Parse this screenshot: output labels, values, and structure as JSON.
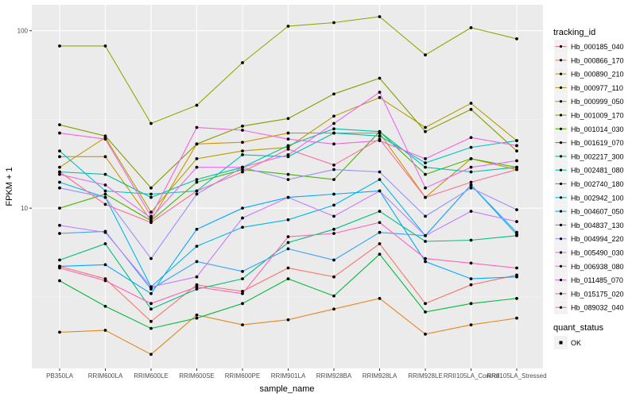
{
  "chart_data": {
    "type": "line",
    "title": "",
    "xlabel": "sample_name",
    "ylabel": "FPKM + 1",
    "y_scale": "log10",
    "ylim": [
      1.25,
      140
    ],
    "y_ticks": [
      10,
      100
    ],
    "y_tick_labels": [
      "10",
      "100"
    ],
    "grid": true,
    "legend_position": "right",
    "categories": [
      "PB350LA",
      "RRIM600LA",
      "RRIM600LE",
      "RRIM600SE",
      "RRIM600PE",
      "RRIM901LA",
      "RRIM928BA",
      "RRIM928LA",
      "RRIM928LE",
      "RRII105LA_Control",
      "RRII105LA_Stressed"
    ],
    "legend_title": "tracking_id",
    "quant_status_title": "quant_status",
    "quant_status_label": "OK",
    "series": [
      {
        "name": "Hb_000185_040",
        "color": "#F8766D",
        "values": [
          4.7,
          4.0,
          2.3,
          3.7,
          3.4,
          4.6,
          4.1,
          6.3,
          2.9,
          3.7,
          4.2
        ]
      },
      {
        "name": "Hb_000866_170",
        "color": "#E7851E",
        "values": [
          2.0,
          2.05,
          1.5,
          2.5,
          2.2,
          2.35,
          2.7,
          3.1,
          1.95,
          2.2,
          2.4
        ]
      },
      {
        "name": "Hb_000890_210",
        "color": "#D09400",
        "values": [
          19.5,
          19.5,
          8.5,
          23.0,
          23.5,
          26.5,
          26.5,
          26.5,
          11.5,
          19.0,
          16.5
        ]
      },
      {
        "name": "Hb_000977_110",
        "color": "#B2A100",
        "values": [
          17.0,
          25.0,
          9.5,
          19.0,
          21.0,
          22.0,
          33.0,
          42.0,
          28.5,
          39.0,
          24.0
        ]
      },
      {
        "name": "Hb_000999_050",
        "color": "#89AC00",
        "values": [
          82.0,
          82.0,
          30.0,
          38.0,
          66.0,
          106.0,
          111.0,
          120.0,
          73.0,
          104.0,
          90.0
        ]
      },
      {
        "name": "Hb_001009_170",
        "color": "#8A9A00",
        "values": [
          29.5,
          25.5,
          13.0,
          23.0,
          29.0,
          32.0,
          44.0,
          54.0,
          27.0,
          36.0,
          21.0
        ]
      },
      {
        "name": "Hb_001014_030",
        "color": "#45B500",
        "values": [
          10.0,
          12.0,
          8.5,
          14.0,
          16.5,
          15.5,
          14.5,
          27.0,
          15.5,
          19.0,
          17.0
        ]
      },
      {
        "name": "Hb_001619_070",
        "color": "#00BA38",
        "values": [
          3.9,
          2.8,
          2.1,
          2.4,
          2.9,
          4.0,
          3.2,
          5.5,
          2.6,
          2.9,
          3.1
        ]
      },
      {
        "name": "Hb_002217_300",
        "color": "#00BF7D",
        "values": [
          5.1,
          6.3,
          2.7,
          3.5,
          4.0,
          6.4,
          7.6,
          9.6,
          6.5,
          6.6,
          7.0
        ]
      },
      {
        "name": "Hb_002481_080",
        "color": "#00C1A3",
        "values": [
          16.0,
          15.5,
          11.5,
          14.5,
          17.0,
          22.5,
          28.0,
          27.0,
          17.0,
          16.0,
          17.0
        ]
      },
      {
        "name": "Hb_002740_180",
        "color": "#00BFC4",
        "values": [
          21.0,
          12.5,
          12.0,
          12.5,
          20.0,
          19.5,
          26.5,
          25.5,
          18.0,
          22.0,
          24.0
        ]
      },
      {
        "name": "Hb_002942_100",
        "color": "#00B8E7",
        "values": [
          14.0,
          11.5,
          3.6,
          6.1,
          7.8,
          8.6,
          10.4,
          14.5,
          7.0,
          13.5,
          7.1
        ]
      },
      {
        "name": "Hb_004607_050",
        "color": "#00A9FF",
        "values": [
          4.7,
          4.8,
          3.3,
          7.6,
          10.0,
          11.5,
          12.0,
          12.5,
          5.0,
          4.0,
          4.1
        ]
      },
      {
        "name": "Hb_004837_130",
        "color": "#35A2FF",
        "values": [
          7.2,
          7.4,
          3.5,
          5.0,
          4.4,
          5.9,
          5.1,
          7.3,
          7.0,
          13.5,
          7.3
        ]
      },
      {
        "name": "Hb_004994_220",
        "color": "#9590FF",
        "values": [
          13.0,
          11.5,
          5.2,
          12.0,
          17.0,
          14.5,
          16.5,
          16.0,
          9.0,
          13.0,
          9.8
        ]
      },
      {
        "name": "Hb_005490_030",
        "color": "#C77CFF",
        "values": [
          8.0,
          7.3,
          3.6,
          4.1,
          8.8,
          11.5,
          9.0,
          12.5,
          7.0,
          9.6,
          8.4
        ]
      },
      {
        "name": "Hb_006938_080",
        "color": "#E76BF3",
        "values": [
          15.5,
          13.5,
          8.8,
          17.0,
          17.0,
          20.0,
          30.0,
          45.0,
          13.0,
          17.0,
          18.5
        ]
      },
      {
        "name": "Hb_011485_070",
        "color": "#F564E3",
        "values": [
          26.5,
          24.5,
          9.0,
          28.5,
          27.5,
          24.5,
          23.0,
          24.0,
          19.0,
          25.0,
          22.5
        ]
      },
      {
        "name": "Hb_015175_020",
        "color": "#FF62BC",
        "values": [
          4.6,
          3.9,
          2.9,
          3.6,
          3.3,
          6.9,
          7.2,
          8.3,
          5.2,
          4.9,
          4.6
        ]
      },
      {
        "name": "Hb_089032_040",
        "color": "#FF6C91",
        "values": [
          16.0,
          10.5,
          8.3,
          12.5,
          16.0,
          21.5,
          17.5,
          24.5,
          11.5,
          14.0,
          16.5
        ]
      }
    ]
  }
}
